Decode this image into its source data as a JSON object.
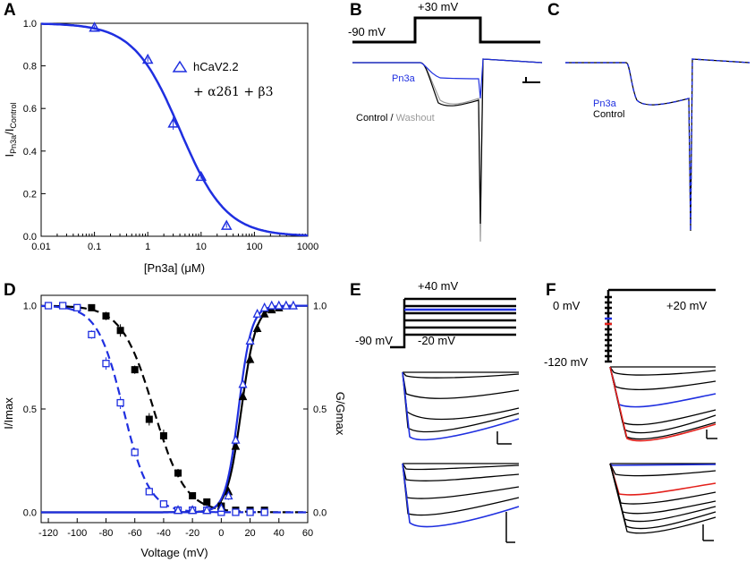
{
  "colors": {
    "blue": "#1f2fe0",
    "black": "#000000",
    "grey": "#9a9a9a",
    "red": "#e3201b"
  },
  "panels": {
    "A": "A",
    "B": "B",
    "C": "C",
    "D": "D",
    "E": "E",
    "F": "F"
  },
  "chart_data": [
    {
      "id": "A",
      "type": "line",
      "xscale": "log",
      "xlabel": "[Pn3a] (μM)",
      "ylabel_main": "I",
      "ylabel_sub1": "Pn3a",
      "ylabel_mid": "/I",
      "ylabel_sub2": "Control",
      "xlim": [
        0.01,
        1000
      ],
      "ylim": [
        0,
        1
      ],
      "x_ticks": [
        "0.01",
        "0.1",
        "1",
        "10",
        "100",
        "1000"
      ],
      "y_ticks": [
        "0.0",
        "0.2",
        "0.4",
        "0.6",
        "0.8",
        "1.0"
      ],
      "legend_label": "hCaV2.2",
      "legend_sub_line": "+ α2δ1 + β3",
      "fit": {
        "ic50": 4.0,
        "hill": 1.0
      },
      "series": [
        {
          "name": "hCaV2.2",
          "x": [
            0.1,
            1,
            3,
            10,
            30
          ],
          "y": [
            0.98,
            0.83,
            0.53,
            0.28,
            0.05
          ],
          "err": [
            0.01,
            0.01,
            0.03,
            0.01,
            0.01
          ]
        }
      ]
    },
    {
      "id": "D",
      "type": "scatter",
      "xlabel": "Voltage (mV)",
      "ylabel_left": "I/Imax",
      "ylabel_right": "G/Gmax",
      "xlim": [
        -125,
        60
      ],
      "ylim": [
        -0.05,
        1.05
      ],
      "x_ticks": [
        "-120",
        "-100",
        "-80",
        "-60",
        "-40",
        "-20",
        "0",
        "20",
        "40",
        "60"
      ],
      "y_ticks": [
        "0.0",
        "0.5",
        "1.0"
      ],
      "series": [
        {
          "name": "Inactivation control",
          "marker": "filled-square",
          "color": "black",
          "x": [
            -100,
            -90,
            -80,
            -70,
            -60,
            -50,
            -40,
            -30,
            -20,
            -10,
            0,
            10,
            20,
            30
          ],
          "y": [
            0.99,
            0.99,
            0.95,
            0.88,
            0.69,
            0.45,
            0.37,
            0.19,
            0.08,
            0.05,
            0.03,
            0.01,
            0.01,
            0.01
          ],
          "err": [
            0.01,
            0.01,
            0.02,
            0.03,
            0.02,
            0.03,
            0.03,
            0.02,
            0.01,
            0.01,
            0.01,
            0.01,
            0.01,
            0.01
          ]
        },
        {
          "name": "Inactivation Pn3a",
          "marker": "open-square",
          "color": "blue",
          "x": [
            -120,
            -110,
            -100,
            -90,
            -80,
            -70,
            -60,
            -50,
            -40,
            -30,
            -20,
            -10,
            0,
            10,
            20,
            30
          ],
          "y": [
            1.0,
            1.0,
            0.99,
            0.86,
            0.72,
            0.53,
            0.29,
            0.1,
            0.04,
            0.01,
            0.01,
            0.01,
            0.0,
            0.0,
            0.0,
            0.0
          ],
          "err": [
            0.01,
            0.01,
            0.01,
            0.02,
            0.03,
            0.03,
            0.02,
            0.01,
            0.01,
            0.01,
            0.01,
            0.01,
            0.01,
            0.01,
            0.01,
            0.01
          ]
        },
        {
          "name": "Activation control",
          "marker": "filled-triangle",
          "color": "black",
          "x": [
            -30,
            -20,
            -10,
            0,
            5,
            10,
            15,
            20,
            25,
            30,
            35,
            40,
            45
          ],
          "y": [
            0.01,
            0.01,
            0.01,
            0.03,
            0.1,
            0.32,
            0.56,
            0.74,
            0.89,
            0.96,
            0.98,
            0.99,
            1.0
          ],
          "err": [
            0.01,
            0.01,
            0.01,
            0.01,
            0.02,
            0.02,
            0.02,
            0.02,
            0.02,
            0.01,
            0.01,
            0.01,
            0.01
          ]
        },
        {
          "name": "Activation Pn3a",
          "marker": "open-triangle",
          "color": "blue",
          "x": [
            -30,
            -20,
            -10,
            0,
            5,
            10,
            15,
            20,
            25,
            30,
            35,
            40,
            45,
            50
          ],
          "y": [
            0.01,
            0.01,
            0.01,
            0.02,
            0.08,
            0.35,
            0.62,
            0.83,
            0.96,
            0.99,
            1.0,
            1.0,
            1.0,
            1.0
          ],
          "err": [
            0.01,
            0.01,
            0.01,
            0.01,
            0.02,
            0.02,
            0.02,
            0.02,
            0.01,
            0.01,
            0.01,
            0.01,
            0.01,
            0.01
          ]
        }
      ],
      "fits": [
        {
          "name": "Inactivation control fit",
          "v50": -47,
          "k": 11,
          "dir": "down",
          "color": "black",
          "dash": true
        },
        {
          "name": "Inactivation Pn3a fit",
          "v50": -68,
          "k": 9,
          "dir": "down",
          "color": "blue",
          "dash": true
        },
        {
          "name": "Activation control fit",
          "v50": 14,
          "k": 5,
          "dir": "up",
          "color": "black",
          "dash": false
        },
        {
          "name": "Activation Pn3a fit",
          "v50": 12,
          "k": 4.5,
          "dir": "up",
          "color": "blue",
          "dash": false
        }
      ]
    }
  ],
  "panelB": {
    "voltage_hold": "-90 mV",
    "voltage_step": "+30 mV",
    "trace_label_pn3a": "Pn3a",
    "trace_label_control": "Control",
    "trace_label_sep": " / ",
    "trace_label_washout": "Washout"
  },
  "panelC": {
    "label_pn3a": "Pn3a",
    "label_control": "Control"
  },
  "panelE": {
    "step_top": "+40 mV",
    "hold": "-90 mV",
    "step_bottom": "-20 mV"
  },
  "panelF": {
    "top": "0 mV",
    "bottom": "-120 mV",
    "test": "+20 mV"
  }
}
